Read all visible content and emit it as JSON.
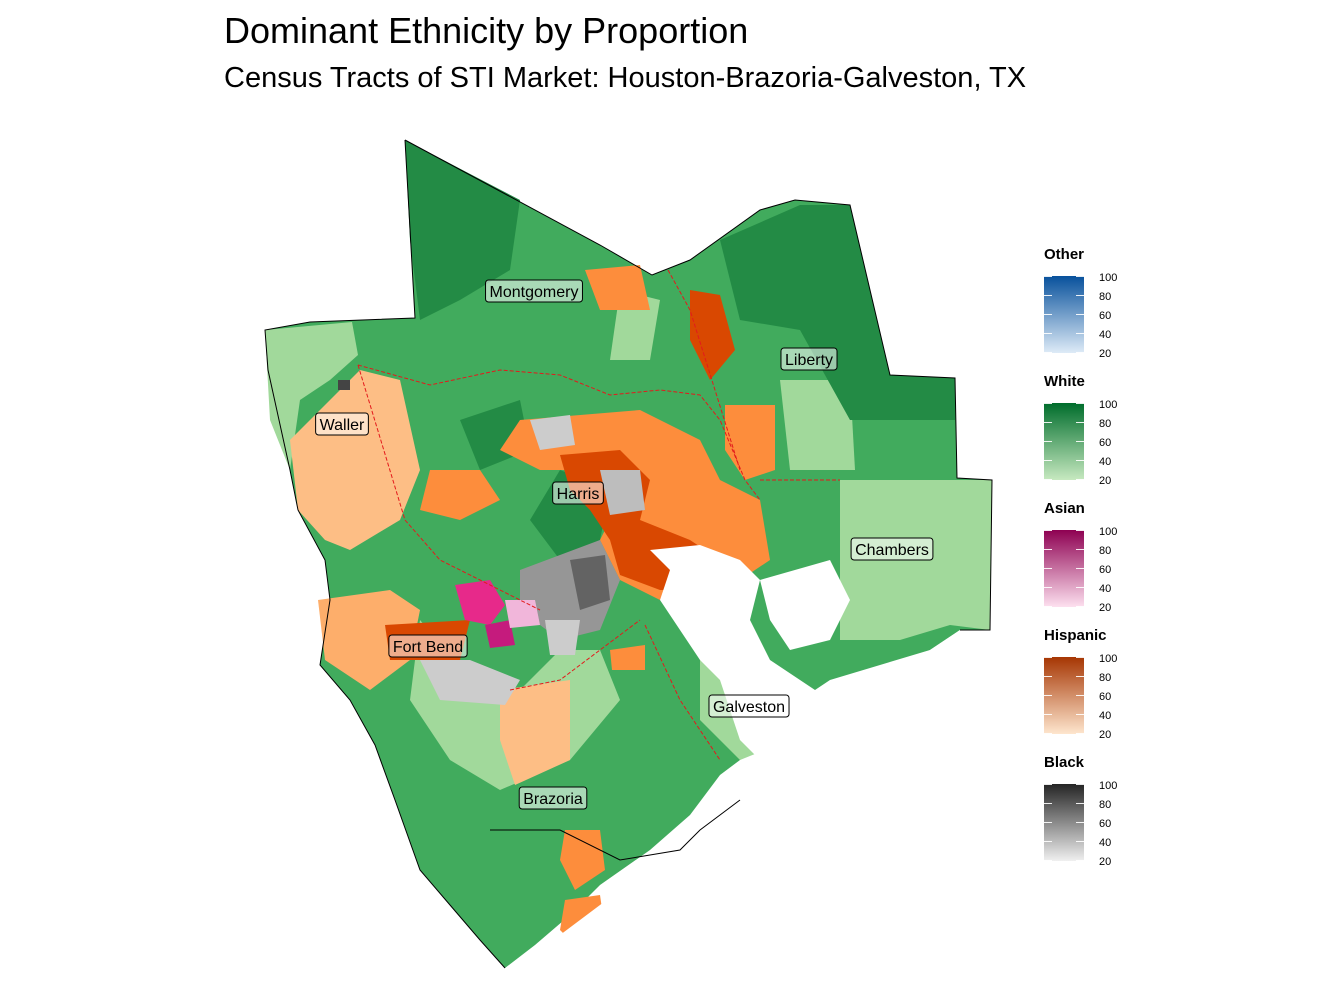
{
  "title": "Dominant Ethnicity by Proportion",
  "subtitle": "Census Tracts of STI Market: Houston-Brazoria-Galveston, TX",
  "counties": [
    {
      "name": "Montgomery"
    },
    {
      "name": "Liberty"
    },
    {
      "name": "Waller"
    },
    {
      "name": "Harris"
    },
    {
      "name": "Chambers"
    },
    {
      "name": "Fort Bend"
    },
    {
      "name": "Galveston"
    },
    {
      "name": "Brazoria"
    }
  ],
  "legend": [
    {
      "title": "Other",
      "low_color": "#deebf7",
      "high_color": "#08519c",
      "labels": [
        "100",
        "80",
        "60",
        "40",
        "20"
      ]
    },
    {
      "title": "White",
      "low_color": "#c7e9c0",
      "high_color": "#006d2c",
      "labels": [
        "100",
        "80",
        "60",
        "40",
        "20"
      ]
    },
    {
      "title": "Asian",
      "low_color": "#fde0ef",
      "high_color": "#8e0152",
      "labels": [
        "100",
        "80",
        "60",
        "40",
        "20"
      ]
    },
    {
      "title": "Hispanic",
      "low_color": "#fee6ce",
      "high_color": "#a63603",
      "labels": [
        "100",
        "80",
        "60",
        "40",
        "20"
      ]
    },
    {
      "title": "Black",
      "low_color": "#f0f0f0",
      "high_color": "#252525",
      "labels": [
        "100",
        "80",
        "60",
        "40",
        "20"
      ]
    }
  ],
  "colors": {
    "white_light": "#a1d99b",
    "white_mid": "#74c476",
    "white_dark": "#41ab5d",
    "white_darker": "#238b45",
    "hispanic_light": "#fdbe85",
    "hispanic_mid": "#fd8d3c",
    "hispanic_dark": "#d94801",
    "black_light": "#cccccc",
    "black_mid": "#969696",
    "black_dark": "#636363",
    "asian_mid": "#e7298a",
    "boundary_red": "#e31a1c"
  }
}
